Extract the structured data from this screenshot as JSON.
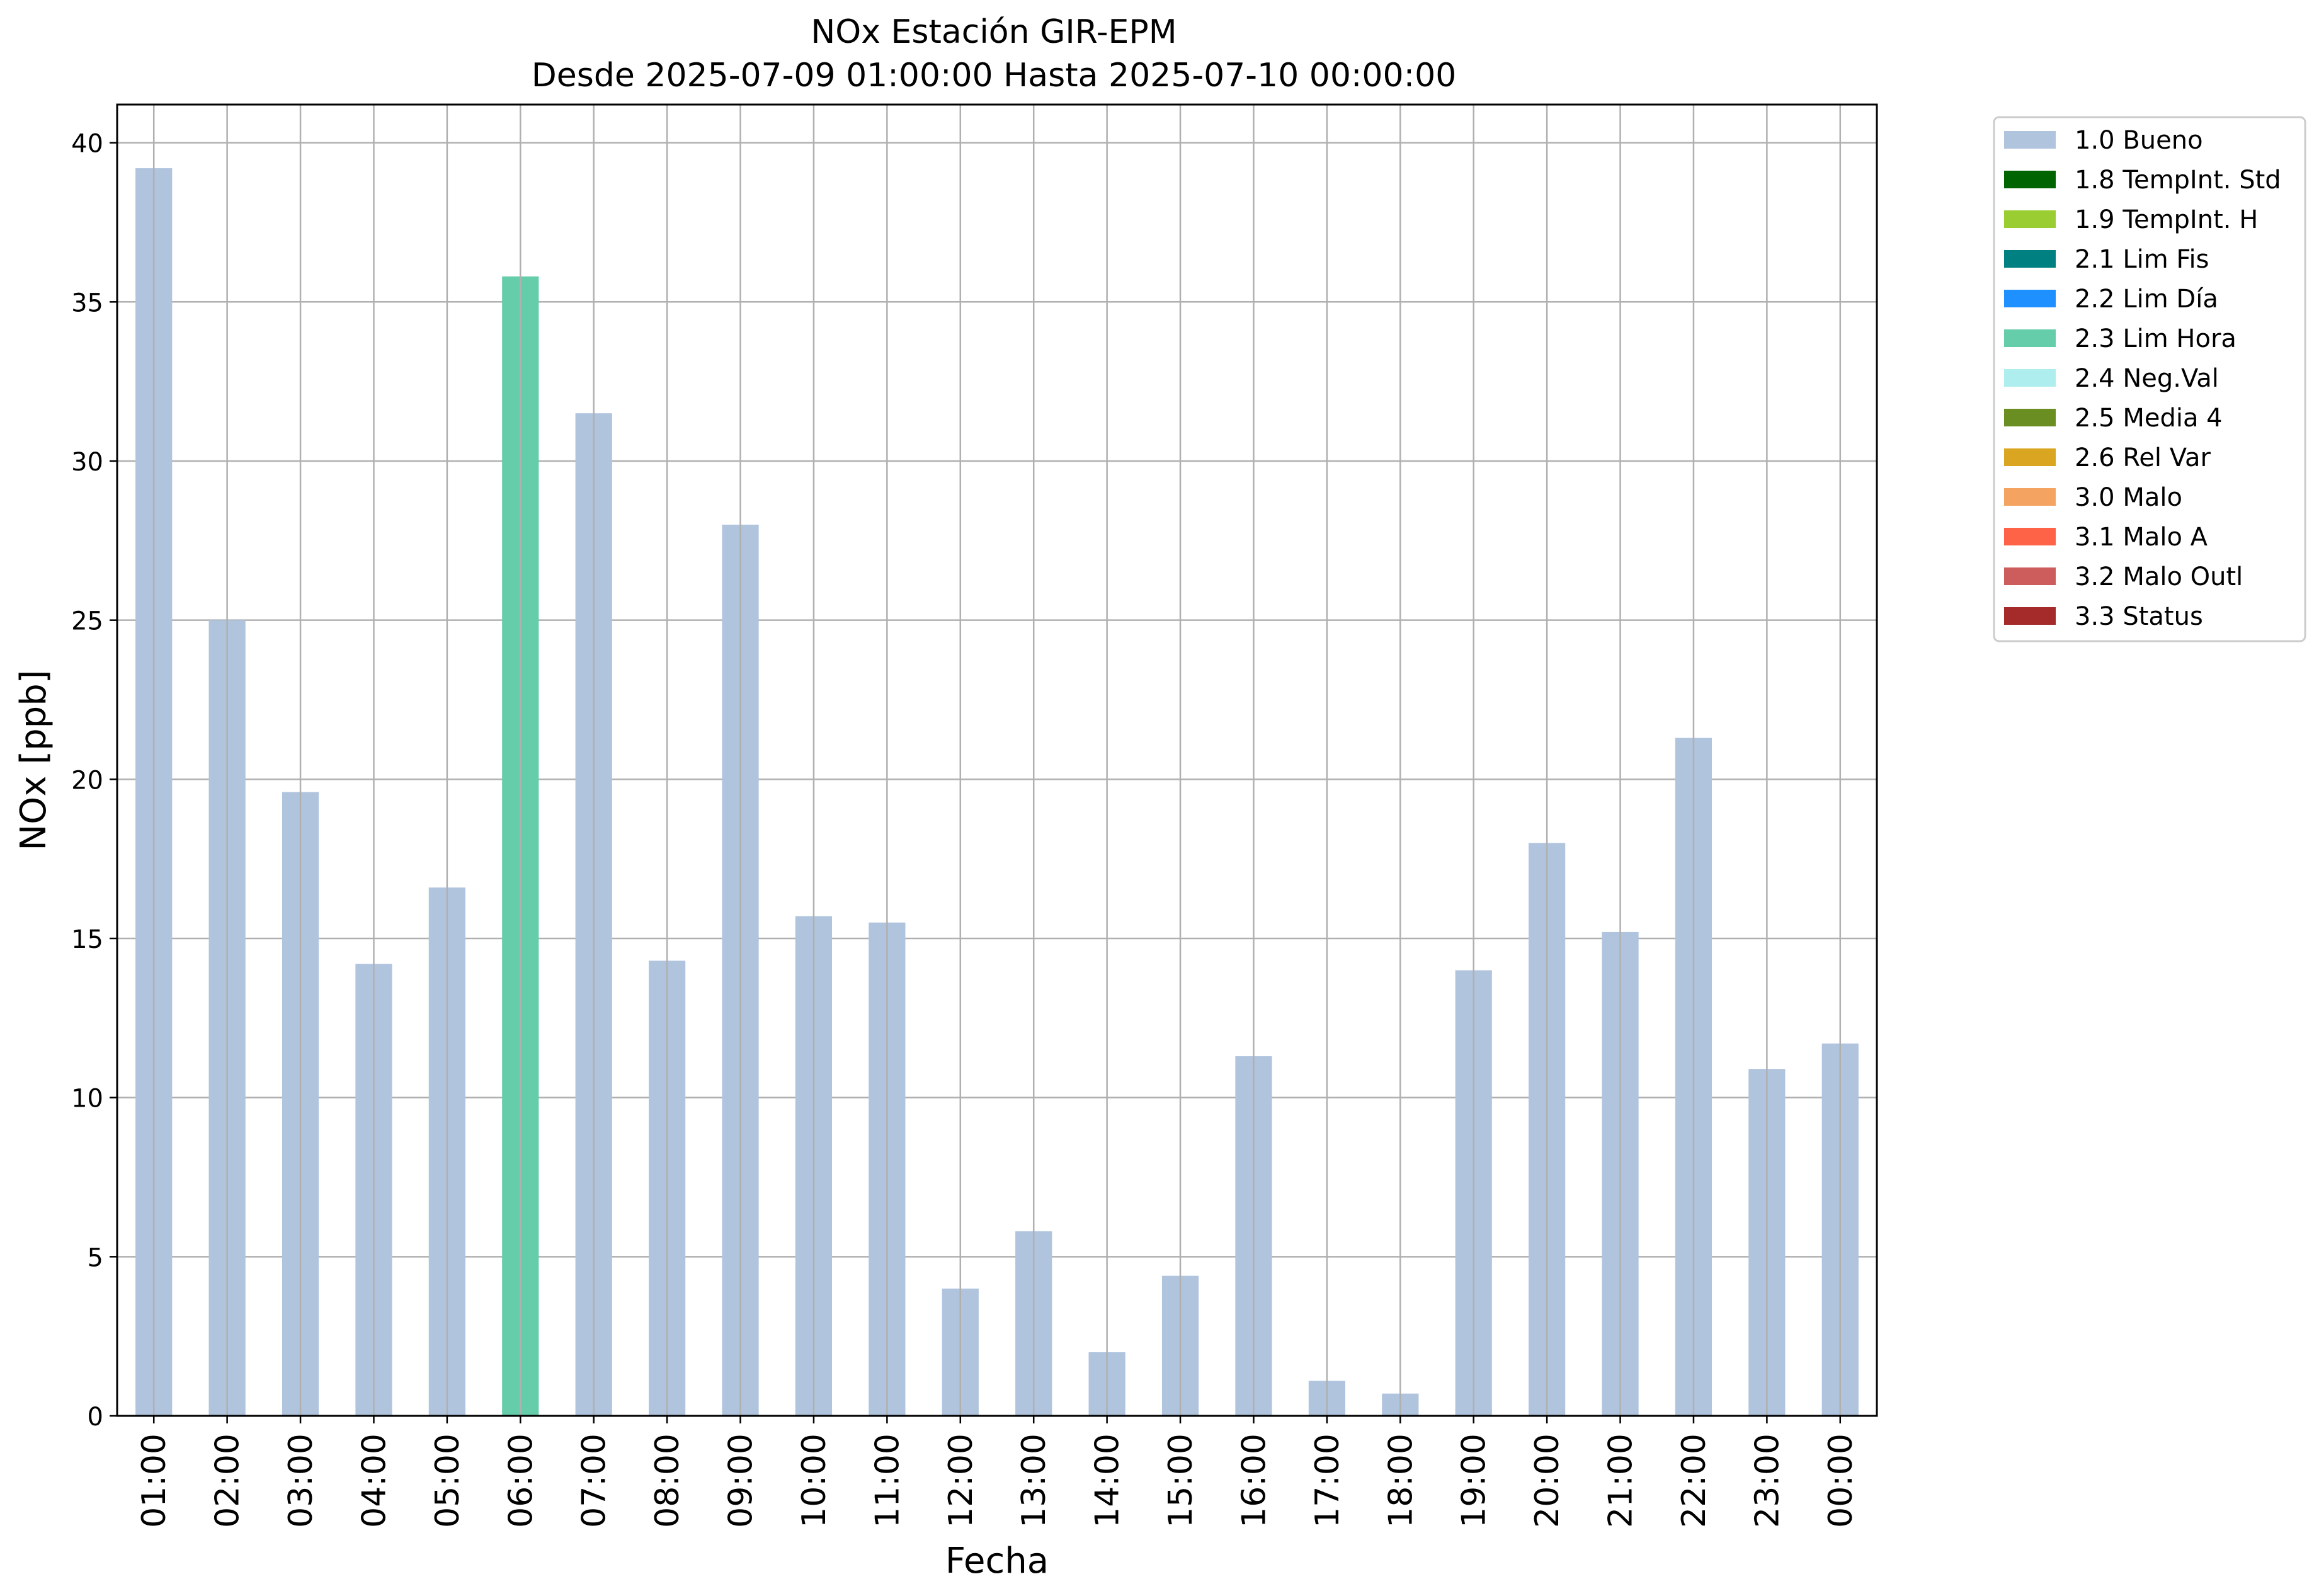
{
  "chart_data": {
    "type": "bar",
    "title": "NOx Estación GIR-EPM",
    "subtitle": "Desde 2025-07-09 01:00:00 Hasta 2025-07-10 00:00:00",
    "xlabel": "Fecha",
    "ylabel": "NOx [ppb]",
    "ylim": [
      0,
      41.2
    ],
    "yticks": [
      0,
      5,
      10,
      15,
      20,
      25,
      30,
      35,
      40
    ],
    "grid": true,
    "legend_position": "outside-right",
    "categories": [
      "01:00",
      "02:00",
      "03:00",
      "04:00",
      "05:00",
      "06:00",
      "07:00",
      "08:00",
      "09:00",
      "10:00",
      "11:00",
      "12:00",
      "13:00",
      "14:00",
      "15:00",
      "16:00",
      "17:00",
      "18:00",
      "19:00",
      "20:00",
      "21:00",
      "22:00",
      "23:00",
      "00:00"
    ],
    "values": [
      39.2,
      25.0,
      19.6,
      14.2,
      16.6,
      35.8,
      31.5,
      14.3,
      28.0,
      15.7,
      15.5,
      4.0,
      5.8,
      2.0,
      4.4,
      11.3,
      1.1,
      0.7,
      14.0,
      18.0,
      15.2,
      21.3,
      10.9,
      11.7
    ],
    "flags": [
      "1.0 Bueno",
      "1.0 Bueno",
      "1.0 Bueno",
      "1.0 Bueno",
      "1.0 Bueno",
      "2.3 Lim Hora",
      "1.0 Bueno",
      "1.0 Bueno",
      "1.0 Bueno",
      "1.0 Bueno",
      "1.0 Bueno",
      "1.0 Bueno",
      "1.0 Bueno",
      "1.0 Bueno",
      "1.0 Bueno",
      "1.0 Bueno",
      "1.0 Bueno",
      "1.0 Bueno",
      "1.0 Bueno",
      "1.0 Bueno",
      "1.0 Bueno",
      "1.0 Bueno",
      "1.0 Bueno",
      "1.0 Bueno"
    ],
    "legend": [
      {
        "label": "1.0 Bueno",
        "color": "#b0c4de"
      },
      {
        "label": "1.8 TempInt. Std",
        "color": "#006400"
      },
      {
        "label": "1.9 TempInt. H",
        "color": "#9acd32"
      },
      {
        "label": "2.1 Lim Fis",
        "color": "#008080"
      },
      {
        "label": "2.2 Lim Día",
        "color": "#1e90ff"
      },
      {
        "label": "2.3 Lim Hora",
        "color": "#66cdaa"
      },
      {
        "label": "2.4 Neg.Val",
        "color": "#afeeee"
      },
      {
        "label": "2.5 Media 4",
        "color": "#6b8e23"
      },
      {
        "label": "2.6 Rel Var",
        "color": "#daa520"
      },
      {
        "label": "3.0 Malo",
        "color": "#f4a460"
      },
      {
        "label": "3.1 Malo A",
        "color": "#ff6347"
      },
      {
        "label": "3.2 Malo Outl",
        "color": "#cd5c5c"
      },
      {
        "label": "3.3 Status",
        "color": "#a52a2a"
      }
    ]
  }
}
